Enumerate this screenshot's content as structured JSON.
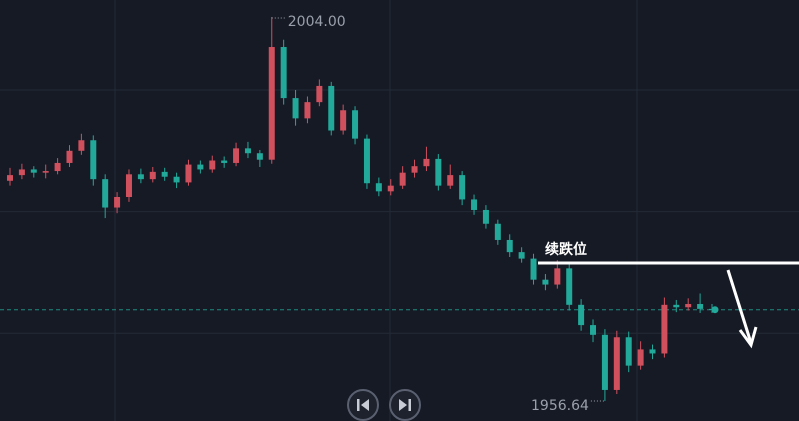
{
  "chart_data": {
    "type": "candlestick",
    "ylim": [
      1954.17,
      2006.1
    ],
    "yticks": [
      1965,
      1980,
      1995
    ],
    "grid": true,
    "up_color": "#d0505e",
    "down_color": "#22a99a",
    "open": [
      1983.8,
      1984.5,
      1985.2,
      1984.8,
      1985.0,
      1986.0,
      1987.5,
      1988.8,
      1984.0,
      1980.5,
      1981.8,
      1984.6,
      1984.0,
      1984.9,
      1984.3,
      1983.6,
      1985.8,
      1985.2,
      1986.3,
      1986.0,
      1987.8,
      1987.2,
      1986.4,
      2000.3,
      1994.0,
      1991.5,
      1993.5,
      1995.5,
      1990.0,
      1992.5,
      1989.0,
      1983.5,
      1982.5,
      1983.2,
      1984.8,
      1985.6,
      1986.5,
      1983.2,
      1984.5,
      1981.5,
      1980.2,
      1978.5,
      1976.5,
      1975.0,
      1974.2,
      1971.6,
      1971.0,
      1973.0,
      1968.5,
      1966.0,
      1964.8,
      1958.0,
      1964.5,
      1961.0,
      1963.0,
      1962.5,
      1968.5,
      1968.2,
      1968.6,
      1968.0
    ],
    "high": [
      1985.4,
      1985.9,
      1985.6,
      1985.8,
      1986.6,
      1988.2,
      1989.6,
      1989.4,
      1984.6,
      1982.4,
      1985.2,
      1985.3,
      1985.5,
      1985.4,
      1984.8,
      1986.4,
      1986.3,
      1986.9,
      1986.8,
      1988.5,
      1988.6,
      1987.6,
      2004.0,
      2001.2,
      1995.0,
      1994.2,
      1996.3,
      1996.0,
      1993.2,
      1993.0,
      1989.5,
      1984.2,
      1984.0,
      1985.6,
      1986.4,
      1988.0,
      1987.1,
      1985.8,
      1985.0,
      1982.1,
      1980.8,
      1979.0,
      1977.2,
      1975.6,
      1974.8,
      1972.3,
      1974.0,
      1973.5,
      1969.2,
      1966.7,
      1965.5,
      1965.3,
      1965.2,
      1964.0,
      1963.6,
      1969.4,
      1969.1,
      1969.3,
      1969.9,
      1968.6
    ],
    "low": [
      1983.2,
      1984.0,
      1984.2,
      1984.1,
      1984.6,
      1985.5,
      1987.0,
      1983.2,
      1979.2,
      1979.8,
      1981.2,
      1983.5,
      1983.6,
      1983.8,
      1982.9,
      1983.2,
      1984.7,
      1984.8,
      1985.4,
      1985.6,
      1986.6,
      1985.5,
      1985.9,
      1993.2,
      1990.6,
      1990.9,
      1993.0,
      1989.4,
      1989.5,
      1988.3,
      1982.8,
      1981.9,
      1982.0,
      1982.8,
      1984.2,
      1985.0,
      1982.6,
      1982.8,
      1980.8,
      1979.6,
      1977.9,
      1975.9,
      1974.4,
      1973.7,
      1971.0,
      1970.3,
      1970.5,
      1967.8,
      1965.3,
      1963.9,
      1956.64,
      1957.5,
      1960.2,
      1960.5,
      1961.8,
      1962.0,
      1967.6,
      1967.8,
      1967.5,
      1967.5
    ],
    "close": [
      1984.5,
      1985.2,
      1984.8,
      1985.0,
      1986.0,
      1987.5,
      1988.8,
      1984.0,
      1980.5,
      1981.8,
      1984.6,
      1984.0,
      1984.9,
      1984.3,
      1983.6,
      1985.8,
      1985.2,
      1986.3,
      1986.0,
      1987.8,
      1987.2,
      1986.4,
      2000.3,
      1994.0,
      1991.5,
      1993.5,
      1995.5,
      1990.0,
      1992.5,
      1989.0,
      1983.5,
      1982.5,
      1983.2,
      1984.8,
      1985.6,
      1986.5,
      1983.2,
      1984.5,
      1981.5,
      1980.2,
      1978.5,
      1976.5,
      1975.0,
      1974.2,
      1971.6,
      1971.0,
      1973.0,
      1968.5,
      1966.0,
      1964.8,
      1958.0,
      1964.5,
      1961.0,
      1963.0,
      1962.5,
      1968.5,
      1968.2,
      1968.6,
      1968.0,
      1967.9
    ],
    "max_label": "2004.00",
    "min_label": "1956.64",
    "annotation": {
      "text": "续跌位",
      "value": 1973.66
    }
  }
}
